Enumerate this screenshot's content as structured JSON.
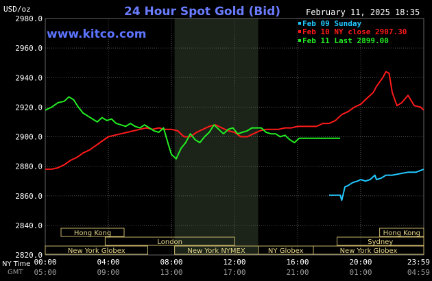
{
  "chart_data": {
    "type": "line",
    "title": "24 Hour Spot Gold (Bid)",
    "unit_label": "USD/oz",
    "watermark": "www.kitco.com",
    "timestamp": "February 11, 2025 18:35",
    "ylim": [
      2820,
      2980
    ],
    "yticks": [
      "2980.0",
      "2960.0",
      "2940.0",
      "2920.0",
      "2900.0",
      "2880.0",
      "2860.0",
      "2840.0",
      "2820.0"
    ],
    "xticks": [
      {
        "ny": "00:00",
        "gmt": "05:00"
      },
      {
        "ny": "04:00",
        "gmt": "09:00"
      },
      {
        "ny": "08:00",
        "gmt": "13:00"
      },
      {
        "ny": "12:00",
        "gmt": "17:00"
      },
      {
        "ny": "16:00",
        "gmt": "21:00"
      },
      {
        "ny": "20:00",
        "gmt": "01:00"
      },
      {
        "ny": "23:59",
        "gmt": "04:59"
      }
    ],
    "row_labels": {
      "ny": "NY Time",
      "gmt": "GMT"
    },
    "legend": [
      {
        "label": "Feb 09 Sunday",
        "color": "#22c8ff"
      },
      {
        "label": "Feb 10 NY close 2907.30",
        "color": "#ff1a1a"
      },
      {
        "label": "Feb 11 Last 2899.00",
        "color": "#22ee22"
      }
    ],
    "sessions": [
      {
        "name": "Hong Kong",
        "start": 1.0,
        "end": 5.0,
        "row": 0
      },
      {
        "name": "Hong Kong",
        "start": 21.2,
        "end": 24.0,
        "row": 0
      },
      {
        "name": "London",
        "start": 3.8,
        "end": 12.0,
        "row": 1
      },
      {
        "name": "Sydney",
        "start": 18.5,
        "end": 24.0,
        "row": 1
      },
      {
        "name": "New York Globex",
        "start": 0.0,
        "end": 6.5,
        "row": 2
      },
      {
        "name": "New York NYMEX",
        "start": 8.2,
        "end": 13.5,
        "row": 2
      },
      {
        "name": "NY Globex",
        "start": 13.5,
        "end": 17.0,
        "row": 2
      },
      {
        "name": "New York Globex",
        "start": 17.0,
        "end": 24.0,
        "row": 2
      }
    ],
    "shaded_region": {
      "start_hour": 8.2,
      "end_hour": 13.5
    },
    "series": [
      {
        "name": "Feb 09 Sunday",
        "color": "#22c8ff",
        "x": [
          18.0,
          18.7,
          18.8,
          19.0,
          19.2,
          19.5,
          19.8,
          20.0,
          20.3,
          20.6,
          20.9,
          21.0,
          21.3,
          21.6,
          22.0,
          22.5,
          23.0,
          23.5,
          24.0
        ],
        "y": [
          2860.5,
          2860.5,
          2857,
          2866,
          2867,
          2869,
          2870,
          2871,
          2870,
          2871,
          2874,
          2871,
          2872,
          2874,
          2874,
          2875,
          2876,
          2876,
          2878
        ]
      },
      {
        "name": "Feb 10 NY close 2907.30",
        "color": "#ff1a1a",
        "x": [
          0.0,
          0.4,
          0.8,
          1.2,
          1.6,
          2.0,
          2.4,
          2.8,
          3.2,
          3.6,
          4.0,
          4.4,
          4.8,
          5.2,
          5.6,
          6.0,
          6.4,
          6.8,
          7.2,
          7.6,
          8.0,
          8.4,
          8.8,
          9.2,
          9.6,
          10.0,
          10.4,
          10.8,
          11.2,
          11.6,
          12.0,
          12.4,
          12.8,
          13.2,
          13.6,
          14.0,
          14.4,
          14.8,
          15.2,
          15.6,
          16.0,
          16.4,
          16.8,
          17.2,
          17.6,
          18.0,
          18.4,
          18.8,
          19.2,
          19.6,
          20.0,
          20.4,
          20.8,
          21.0,
          21.2,
          21.4,
          21.6,
          21.8,
          22.0,
          22.3,
          22.6,
          23.0,
          23.4,
          23.8,
          24.0
        ],
        "y": [
          2878,
          2878,
          2879,
          2881,
          2884,
          2886,
          2889,
          2891,
          2894,
          2897,
          2900,
          2901,
          2902,
          2903,
          2904,
          2905,
          2906,
          2905,
          2906,
          2905,
          2905,
          2904,
          2900,
          2900,
          2903,
          2905,
          2907,
          2908,
          2906,
          2904,
          2903,
          2900,
          2900,
          2902,
          2904,
          2905,
          2905,
          2905,
          2906,
          2906,
          2907,
          2907,
          2907,
          2907,
          2909,
          2909,
          2911,
          2915,
          2917,
          2920,
          2922,
          2926,
          2930,
          2934,
          2937,
          2940,
          2944,
          2943,
          2930,
          2921,
          2923,
          2928,
          2921,
          2920,
          2918
        ]
      },
      {
        "name": "Feb 11 Last 2899.00",
        "color": "#22ee22",
        "x": [
          0.0,
          0.4,
          0.8,
          1.2,
          1.5,
          1.8,
          2.1,
          2.4,
          2.7,
          3.0,
          3.3,
          3.6,
          3.9,
          4.2,
          4.5,
          4.8,
          5.1,
          5.4,
          5.7,
          6.0,
          6.3,
          6.6,
          6.9,
          7.2,
          7.5,
          7.8,
          8.0,
          8.3,
          8.6,
          8.9,
          9.2,
          9.5,
          9.8,
          10.1,
          10.4,
          10.7,
          11.0,
          11.3,
          11.6,
          11.9,
          12.2,
          12.5,
          12.8,
          13.1,
          13.4,
          13.7,
          14.0,
          14.3,
          14.6,
          14.9,
          15.2,
          15.5,
          15.8,
          16.1,
          16.4,
          16.7,
          17.0,
          17.3,
          17.6,
          17.9,
          18.2,
          18.5,
          18.7
        ],
        "y": [
          2918,
          2920,
          2923,
          2924,
          2927,
          2925,
          2920,
          2916,
          2914,
          2912,
          2910,
          2913,
          2911,
          2912,
          2909,
          2908,
          2907,
          2909,
          2907,
          2906,
          2908,
          2906,
          2904,
          2903,
          2906,
          2895,
          2888,
          2885,
          2892,
          2896,
          2902,
          2898,
          2896,
          2900,
          2903,
          2908,
          2905,
          2902,
          2905,
          2906,
          2902,
          2903,
          2904,
          2906,
          2906,
          2906,
          2903,
          2902,
          2902,
          2900,
          2901,
          2898,
          2896,
          2899,
          2899,
          2899,
          2899,
          2899,
          2899,
          2899,
          2899,
          2899,
          2899
        ]
      }
    ]
  }
}
